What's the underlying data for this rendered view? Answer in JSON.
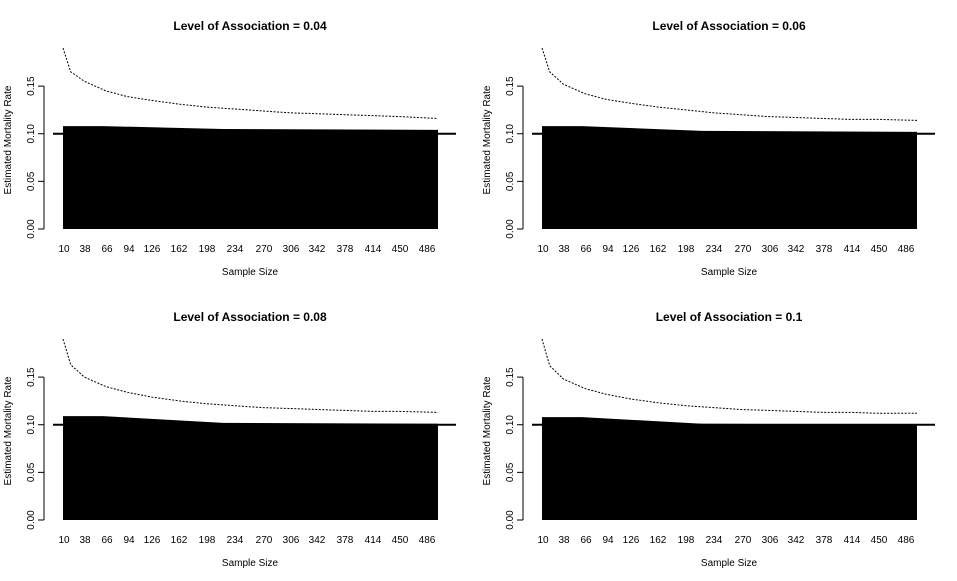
{
  "chart_data": [
    {
      "type": "bar",
      "title": "Level of Association = 0.04",
      "xlabel": "Sample Size",
      "ylabel": "Estimated Mortality Rate",
      "ylim": [
        0,
        0.19
      ],
      "yticks": [
        "0.00",
        "0.05",
        "0.10",
        "0.15"
      ],
      "yticks_values": [
        0,
        0.05,
        0.1,
        0.15
      ],
      "xtick_labels": [
        "10",
        "38",
        "66",
        "94",
        "126",
        "162",
        "198",
        "234",
        "270",
        "306",
        "342",
        "378",
        "414",
        "450",
        "486"
      ],
      "x_range": [
        10,
        500
      ],
      "bars_start": [
        0.108,
        0.105,
        0.104
      ],
      "ref_line": 0.1,
      "upper_curve": {
        "x": [
          10,
          20,
          38,
          66,
          94,
          126,
          162,
          198,
          234,
          270,
          306,
          342,
          378,
          414,
          450,
          500
        ],
        "y": [
          0.19,
          0.165,
          0.155,
          0.145,
          0.139,
          0.135,
          0.131,
          0.128,
          0.126,
          0.124,
          0.122,
          0.121,
          0.12,
          0.119,
          0.118,
          0.116
        ]
      }
    },
    {
      "type": "bar",
      "title": "Level of Association = 0.06",
      "xlabel": "Sample Size",
      "ylabel": "Estimated Mortality Rate",
      "ylim": [
        0,
        0.19
      ],
      "yticks": [
        "0.00",
        "0.05",
        "0.10",
        "0.15"
      ],
      "yticks_values": [
        0,
        0.05,
        0.1,
        0.15
      ],
      "xtick_labels": [
        "10",
        "38",
        "66",
        "94",
        "126",
        "162",
        "198",
        "234",
        "270",
        "306",
        "342",
        "378",
        "414",
        "450",
        "486"
      ],
      "x_range": [
        10,
        500
      ],
      "bars_start": [
        0.108,
        0.103,
        0.102
      ],
      "ref_line": 0.1,
      "upper_curve": {
        "x": [
          10,
          20,
          38,
          66,
          94,
          126,
          162,
          198,
          234,
          270,
          306,
          342,
          378,
          414,
          450,
          500
        ],
        "y": [
          0.19,
          0.165,
          0.152,
          0.142,
          0.136,
          0.132,
          0.128,
          0.125,
          0.122,
          0.12,
          0.118,
          0.117,
          0.116,
          0.115,
          0.115,
          0.114
        ]
      }
    },
    {
      "type": "bar",
      "title": "Level of Association = 0.08",
      "xlabel": "Sample Size",
      "ylabel": "Estimated Mortality Rate",
      "ylim": [
        0,
        0.19
      ],
      "yticks": [
        "0.00",
        "0.05",
        "0.10",
        "0.15"
      ],
      "yticks_values": [
        0,
        0.05,
        0.1,
        0.15
      ],
      "xtick_labels": [
        "10",
        "38",
        "66",
        "94",
        "126",
        "162",
        "198",
        "234",
        "270",
        "306",
        "342",
        "378",
        "414",
        "450",
        "486"
      ],
      "x_range": [
        10,
        500
      ],
      "bars_start": [
        0.109,
        0.102,
        0.101
      ],
      "ref_line": 0.1,
      "upper_curve": {
        "x": [
          10,
          20,
          38,
          66,
          94,
          126,
          162,
          198,
          234,
          270,
          306,
          342,
          378,
          414,
          450,
          500
        ],
        "y": [
          0.19,
          0.163,
          0.15,
          0.14,
          0.134,
          0.129,
          0.125,
          0.122,
          0.12,
          0.118,
          0.117,
          0.116,
          0.115,
          0.114,
          0.114,
          0.113
        ]
      }
    },
    {
      "type": "bar",
      "title": "Level of Association = 0.1",
      "xlabel": "Sample Size",
      "ylabel": "Estimated Mortality Rate",
      "ylim": [
        0,
        0.19
      ],
      "yticks": [
        "0.00",
        "0.05",
        "0.10",
        "0.15"
      ],
      "yticks_values": [
        0,
        0.05,
        0.1,
        0.15
      ],
      "xtick_labels": [
        "10",
        "38",
        "66",
        "94",
        "126",
        "162",
        "198",
        "234",
        "270",
        "306",
        "342",
        "378",
        "414",
        "450",
        "486"
      ],
      "x_range": [
        10,
        500
      ],
      "bars_start": [
        0.108,
        0.101,
        0.1
      ],
      "ref_line": 0.1,
      "upper_curve": {
        "x": [
          10,
          20,
          38,
          66,
          94,
          126,
          162,
          198,
          234,
          270,
          306,
          342,
          378,
          414,
          450,
          500
        ],
        "y": [
          0.19,
          0.162,
          0.148,
          0.138,
          0.132,
          0.127,
          0.123,
          0.12,
          0.118,
          0.116,
          0.115,
          0.114,
          0.113,
          0.113,
          0.112,
          0.112
        ]
      }
    }
  ]
}
